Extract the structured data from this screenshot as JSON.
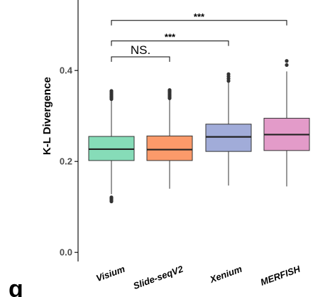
{
  "panel_letter": "g",
  "chart_data": {
    "type": "boxplot",
    "ylabel": "K-L Divergence",
    "xlabel": "",
    "ylim": [
      -0.02,
      0.555
    ],
    "yticks": [
      0.0,
      0.2,
      0.4
    ],
    "ytick_labels": [
      "0.0",
      "0.2",
      "0.4"
    ],
    "grid": false,
    "categories": [
      "Visium",
      "Slide-seqV2",
      "Xenium",
      "MERFISH"
    ],
    "colors": [
      "#86dcb8",
      "#fc9a6a",
      "#a1acd9",
      "#e39bc9"
    ],
    "boxes": [
      {
        "category": "Visium",
        "whisker_low": 0.128,
        "q1": 0.202,
        "median": 0.227,
        "q3": 0.255,
        "whisker_high": 0.334,
        "outliers": [
          0.112,
          0.115,
          0.118,
          0.121,
          0.337,
          0.34,
          0.343,
          0.346,
          0.349,
          0.352,
          0.355
        ]
      },
      {
        "category": "Slide-seqV2",
        "whisker_low": 0.14,
        "q1": 0.202,
        "median": 0.226,
        "q3": 0.256,
        "whisker_high": 0.336,
        "outliers": [
          0.339,
          0.342,
          0.345,
          0.348,
          0.351,
          0.354,
          0.357
        ]
      },
      {
        "category": "Xenium",
        "whisker_low": 0.147,
        "q1": 0.222,
        "median": 0.254,
        "q3": 0.282,
        "whisker_high": 0.373,
        "outliers": [
          0.377,
          0.382,
          0.387,
          0.392
        ]
      },
      {
        "category": "MERFISH",
        "whisker_low": 0.145,
        "q1": 0.224,
        "median": 0.259,
        "q3": 0.295,
        "whisker_high": 0.398,
        "outliers": [
          0.412,
          0.421
        ]
      }
    ],
    "comparisons": [
      {
        "from": "Visium",
        "to": "Slide-seqV2",
        "label": "NS.",
        "y": 0.43
      },
      {
        "from": "Visium",
        "to": "Xenium",
        "label": "***",
        "y": 0.465
      },
      {
        "from": "Visium",
        "to": "MERFISH",
        "label": "***",
        "y": 0.51
      }
    ]
  }
}
